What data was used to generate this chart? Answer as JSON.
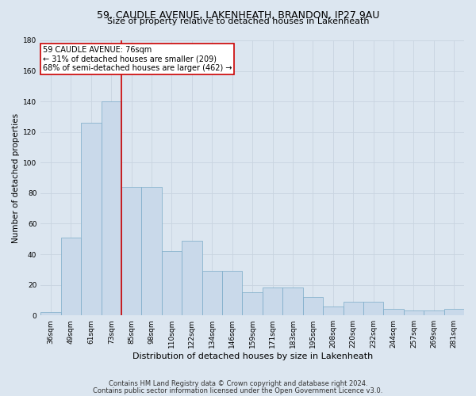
{
  "title1": "59, CAUDLE AVENUE, LAKENHEATH, BRANDON, IP27 9AU",
  "title2": "Size of property relative to detached houses in Lakenheath",
  "xlabel": "Distribution of detached houses by size in Lakenheath",
  "ylabel": "Number of detached properties",
  "footer1": "Contains HM Land Registry data © Crown copyright and database right 2024.",
  "footer2": "Contains public sector information licensed under the Open Government Licence v3.0.",
  "bar_labels": [
    "36sqm",
    "49sqm",
    "61sqm",
    "73sqm",
    "85sqm",
    "98sqm",
    "110sqm",
    "122sqm",
    "134sqm",
    "146sqm",
    "159sqm",
    "171sqm",
    "183sqm",
    "195sqm",
    "208sqm",
    "220sqm",
    "232sqm",
    "244sqm",
    "257sqm",
    "269sqm",
    "281sqm"
  ],
  "bar_values": [
    2,
    51,
    126,
    140,
    84,
    84,
    42,
    49,
    29,
    29,
    15,
    18,
    18,
    12,
    6,
    9,
    9,
    4,
    3,
    3,
    4
  ],
  "bar_color": "#c9d9ea",
  "bar_edge_color": "#7aaac8",
  "annotation_title": "59 CAUDLE AVENUE: 76sqm",
  "annotation_line1": "← 31% of detached houses are smaller (209)",
  "annotation_line2": "68% of semi-detached houses are larger (462) →",
  "red_line_x": 3.5,
  "annotation_box_color": "#ffffff",
  "annotation_box_edge": "#cc0000",
  "red_line_color": "#cc0000",
  "grid_color": "#c8d4e0",
  "background_color": "#dce6f0",
  "ylim": [
    0,
    180
  ],
  "yticks": [
    0,
    20,
    40,
    60,
    80,
    100,
    120,
    140,
    160,
    180
  ],
  "title1_fontsize": 9,
  "title2_fontsize": 8,
  "xlabel_fontsize": 8,
  "ylabel_fontsize": 7.5,
  "tick_fontsize": 6.5,
  "ann_fontsize": 7,
  "footer_fontsize": 6
}
